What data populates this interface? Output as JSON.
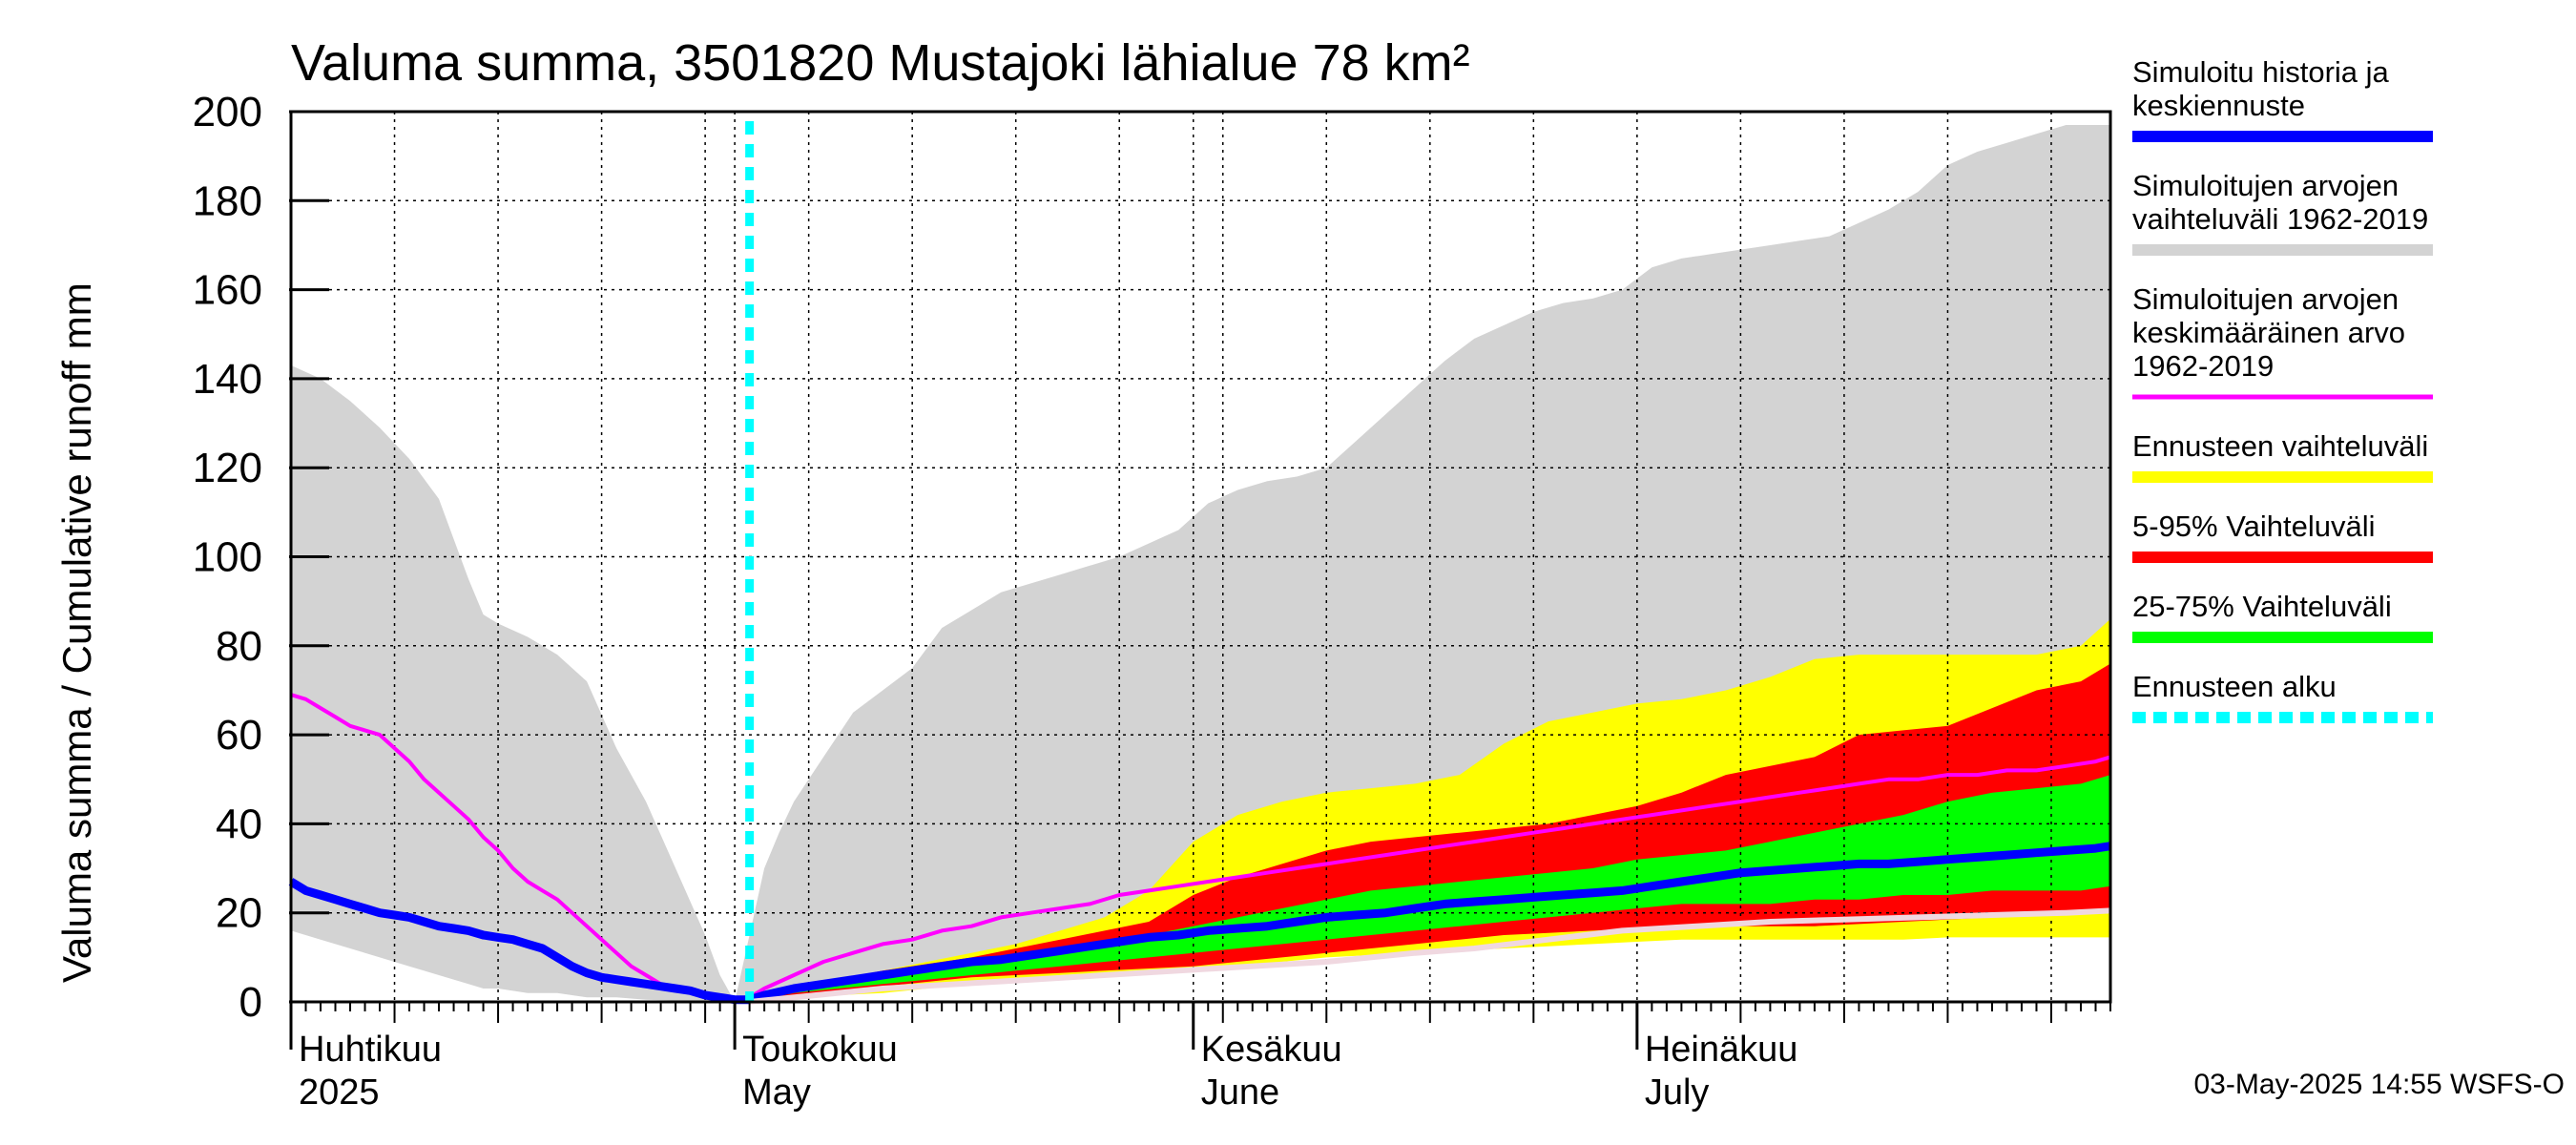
{
  "chart_data": {
    "type": "area",
    "title": "Valuma summa, 3501820 Mustajoki lähialue 78 km²",
    "ylabel": "Valuma summa / Cumulative runoff     mm",
    "ylim": [
      0,
      200
    ],
    "y_ticks": [
      "0",
      "20",
      "40",
      "60",
      "80",
      "100",
      "120",
      "140",
      "160",
      "180",
      "200"
    ],
    "x_range_days": [
      0,
      123
    ],
    "x_note": "day 0 = 1 April 2025, day 122 = 31 July 2025",
    "months": [
      {
        "fi": "Huhtikuu",
        "en": "2025",
        "day": 0
      },
      {
        "fi": "Toukokuu",
        "en": "May",
        "day": 30
      },
      {
        "fi": "Kesäkuu",
        "en": "June",
        "day": 61
      },
      {
        "fi": "Heinäkuu",
        "en": "July",
        "day": 91
      }
    ],
    "forecast_start_day": 31,
    "series": [
      {
        "name": "Simuloitujen arvojen vaihteluväli 1962-2019",
        "type": "band",
        "color": "#d3d3d3",
        "x": [
          0,
          2,
          4,
          6,
          8,
          10,
          12,
          13,
          14,
          16,
          18,
          20,
          22,
          24,
          26,
          28,
          29,
          30,
          31,
          32,
          33,
          34,
          36,
          38,
          40,
          42,
          44,
          46,
          48,
          50,
          52,
          56,
          60,
          62,
          64,
          66,
          68,
          70,
          72,
          74,
          76,
          78,
          80,
          82,
          84,
          86,
          88,
          90,
          92,
          94,
          96,
          98,
          100,
          102,
          104,
          106,
          108,
          110,
          112,
          114,
          116,
          118,
          120,
          122,
          123
        ],
        "upper": [
          143,
          140,
          135,
          129,
          122,
          113,
          95,
          87,
          85,
          82,
          78,
          72,
          57,
          45,
          30,
          15,
          6,
          0,
          15,
          30,
          38,
          45,
          55,
          65,
          70,
          75,
          84,
          88,
          92,
          94,
          96,
          100,
          106,
          112,
          115,
          117,
          118,
          120,
          126,
          132,
          138,
          144,
          149,
          152,
          155,
          157,
          158,
          160,
          165,
          167,
          168,
          169,
          170,
          171,
          172,
          175,
          178,
          182,
          188,
          191,
          193,
          195,
          197,
          197,
          197
        ],
        "lower": [
          16,
          14,
          12,
          10,
          8,
          6,
          4,
          3,
          3,
          2,
          2,
          1,
          1,
          0.5,
          0.3,
          0.2,
          0.1,
          0,
          0.5,
          1,
          1.5,
          2,
          2.5,
          3,
          3.5,
          4,
          5,
          6,
          7,
          8,
          8.5,
          9,
          9.5,
          10,
          10.5,
          11,
          11.5,
          12,
          12.5,
          13,
          13.5,
          14,
          14.5,
          15,
          15,
          15,
          15,
          15,
          15,
          15,
          15,
          15,
          15,
          15,
          15,
          15,
          15,
          15,
          15,
          15,
          15,
          15,
          15,
          15,
          15
        ]
      },
      {
        "name": "Ennusteen vaihteluväli",
        "type": "band",
        "color": "#ffff00",
        "x": [
          31,
          34,
          37,
          40,
          43,
          46,
          49,
          52,
          55,
          58,
          61,
          64,
          67,
          70,
          73,
          76,
          79,
          82,
          85,
          88,
          91,
          94,
          97,
          100,
          103,
          106,
          109,
          112,
          115,
          118,
          121,
          123
        ],
        "upper": [
          1,
          3,
          5,
          7,
          9,
          11,
          13,
          16,
          19,
          25,
          36,
          42,
          45,
          47,
          48,
          49,
          51,
          58,
          63,
          65,
          67,
          68,
          70,
          73,
          77,
          78,
          78,
          78,
          78,
          78,
          80,
          86
        ],
        "lower": [
          0,
          1,
          1.5,
          2,
          3,
          4,
          5,
          6,
          6.5,
          7,
          7.5,
          8,
          9,
          10,
          10.5,
          11,
          11.5,
          12,
          12.5,
          13,
          13.5,
          14,
          14,
          14,
          14,
          14,
          14,
          14.5,
          14.5,
          14.5,
          14.5,
          14.5
        ]
      },
      {
        "name": "5-95% Vaihteluväli",
        "type": "band",
        "color": "#ff0000",
        "x": [
          31,
          34,
          37,
          40,
          43,
          46,
          49,
          52,
          55,
          58,
          61,
          64,
          67,
          70,
          73,
          76,
          79,
          82,
          85,
          88,
          91,
          94,
          97,
          100,
          103,
          106,
          109,
          112,
          115,
          118,
          121,
          123
        ],
        "upper": [
          1,
          3,
          5,
          7,
          8.5,
          10,
          12,
          14,
          16,
          18,
          24,
          28,
          31,
          34,
          36,
          37,
          38,
          39,
          40,
          42,
          44,
          47,
          51,
          53,
          55,
          60,
          61,
          62,
          66,
          70,
          72,
          76
        ],
        "lower": [
          0,
          1.5,
          2.5,
          3.5,
          4.5,
          5.5,
          6,
          6.5,
          7,
          7.5,
          8,
          9,
          10,
          11,
          12,
          13,
          14,
          15,
          15.5,
          16,
          16.5,
          17,
          17,
          17,
          17,
          17.5,
          18,
          18.5,
          19,
          19.5,
          20,
          20
        ]
      },
      {
        "name": "25-75% Vaihteluväli",
        "type": "band",
        "color": "#00ff00",
        "x": [
          31,
          34,
          37,
          40,
          43,
          46,
          49,
          52,
          55,
          58,
          61,
          64,
          67,
          70,
          73,
          76,
          79,
          82,
          85,
          88,
          91,
          94,
          97,
          100,
          103,
          106,
          109,
          112,
          115,
          118,
          121,
          123
        ],
        "upper": [
          1,
          3,
          4.5,
          6,
          7,
          8.5,
          10,
          11.5,
          13,
          15,
          17,
          19,
          21,
          23,
          25,
          26,
          27,
          28,
          29,
          30,
          32,
          33,
          34,
          36,
          38,
          40,
          42,
          45,
          47,
          48,
          49,
          51
        ],
        "lower": [
          0,
          2,
          3,
          4,
          5,
          6,
          7,
          8,
          9,
          10,
          11,
          12,
          13,
          14,
          15,
          16,
          17,
          18,
          19,
          20,
          21,
          22,
          22,
          22,
          23,
          23,
          24,
          24,
          25,
          25,
          25,
          26
        ]
      },
      {
        "name": "Simuloitujen arvojen keskimääräinen arvo 1962-2019",
        "type": "line",
        "color": "#ff00ff",
        "x": [
          0,
          1,
          2,
          3,
          4,
          5,
          6,
          7,
          8,
          9,
          10,
          11,
          12,
          13,
          14,
          15,
          16,
          17,
          18,
          19,
          20,
          21,
          22,
          23,
          24,
          25,
          26,
          27,
          28,
          29,
          30,
          31,
          32,
          34,
          36,
          38,
          40,
          42,
          44,
          46,
          48,
          50,
          52,
          54,
          56,
          58,
          60,
          62,
          64,
          66,
          68,
          70,
          72,
          74,
          76,
          78,
          80,
          82,
          84,
          86,
          88,
          90,
          92,
          94,
          96,
          98,
          100,
          102,
          104,
          106,
          108,
          110,
          112,
          114,
          116,
          118,
          120,
          122,
          123
        ],
        "values": [
          69,
          68,
          66,
          64,
          62,
          61,
          60,
          57,
          54,
          50,
          47,
          44,
          41,
          37,
          34,
          30,
          27,
          25,
          23,
          20,
          17,
          14,
          11,
          8,
          6,
          4,
          3,
          2,
          1.5,
          1,
          0.5,
          1,
          3,
          6,
          9,
          11,
          13,
          14,
          16,
          17,
          19,
          20,
          21,
          22,
          24,
          25,
          26,
          27,
          28,
          29,
          30,
          31,
          32,
          33,
          34,
          35,
          36,
          37,
          38,
          39,
          40,
          41,
          42,
          43,
          44,
          45,
          46,
          47,
          48,
          49,
          50,
          50,
          51,
          51,
          52,
          52,
          53,
          54,
          55
        ]
      },
      {
        "name": "Simuloitu historia ja keskiennuste",
        "type": "line",
        "color": "#0000ff",
        "x": [
          0,
          1,
          2,
          3,
          4,
          5,
          6,
          7,
          8,
          9,
          10,
          11,
          12,
          13,
          14,
          15,
          16,
          17,
          18,
          19,
          20,
          21,
          22,
          23,
          24,
          25,
          26,
          27,
          28,
          29,
          30,
          31,
          32,
          34,
          36,
          38,
          40,
          42,
          44,
          46,
          48,
          50,
          52,
          54,
          56,
          58,
          60,
          62,
          64,
          66,
          68,
          70,
          72,
          74,
          76,
          78,
          80,
          82,
          84,
          86,
          88,
          90,
          92,
          94,
          96,
          98,
          100,
          102,
          104,
          106,
          108,
          110,
          112,
          114,
          116,
          118,
          120,
          122,
          123
        ],
        "values": [
          27,
          25,
          24,
          23,
          22,
          21,
          20,
          19.5,
          19,
          18,
          17,
          16.5,
          16,
          15,
          14.5,
          14,
          13,
          12,
          10,
          8,
          6.5,
          5.5,
          5,
          4.5,
          4,
          3.5,
          3,
          2.5,
          1.5,
          1,
          0.5,
          0.5,
          1.5,
          3,
          4,
          5,
          6,
          7,
          8,
          9,
          9.5,
          10.5,
          11.5,
          12.5,
          13.5,
          14.5,
          15,
          16,
          16.5,
          17,
          18,
          19,
          19.5,
          20,
          21,
          22,
          22.5,
          23,
          23.5,
          24,
          24.5,
          25,
          26,
          27,
          28,
          29,
          29.5,
          30,
          30.5,
          31,
          31,
          31.5,
          32,
          32.5,
          33,
          33.5,
          34,
          34.5,
          35
        ]
      },
      {
        "name": "Median (light)",
        "type": "line",
        "color": "#f0d8e0",
        "x": [
          31,
          40,
          50,
          60,
          70,
          76,
          80,
          85,
          90,
          95,
          100,
          105,
          110,
          115,
          120,
          123
        ],
        "values": [
          0,
          3,
          5,
          7,
          9,
          11,
          12,
          14,
          16,
          17,
          18,
          18.5,
          19,
          19.5,
          20,
          20.5
        ]
      }
    ]
  },
  "legend": {
    "items": [
      {
        "lines": [
          "Simuloitu historia ja",
          "keskiennuste"
        ],
        "color": "#0000ff",
        "style": "solid"
      },
      {
        "lines": [
          "Simuloitujen arvojen",
          "vaihteluväli 1962-2019"
        ],
        "color": "#d3d3d3",
        "style": "solid"
      },
      {
        "lines": [
          "Simuloitujen arvojen",
          "keskimääräinen arvo",
          "   1962-2019"
        ],
        "color": "#ff00ff",
        "style": "thin"
      },
      {
        "lines": [
          "Ennusteen vaihteluväli"
        ],
        "color": "#ffff00",
        "style": "solid"
      },
      {
        "lines": [
          "5-95% Vaihteluväli"
        ],
        "color": "#ff0000",
        "style": "solid"
      },
      {
        "lines": [
          "25-75% Vaihteluväli"
        ],
        "color": "#00ff00",
        "style": "solid"
      },
      {
        "lines": [
          "Ennusteen alku"
        ],
        "color": "#00ffff",
        "style": "dashed"
      }
    ]
  },
  "footer": {
    "timestamp": "03-May-2025 14:55 WSFS-O"
  }
}
